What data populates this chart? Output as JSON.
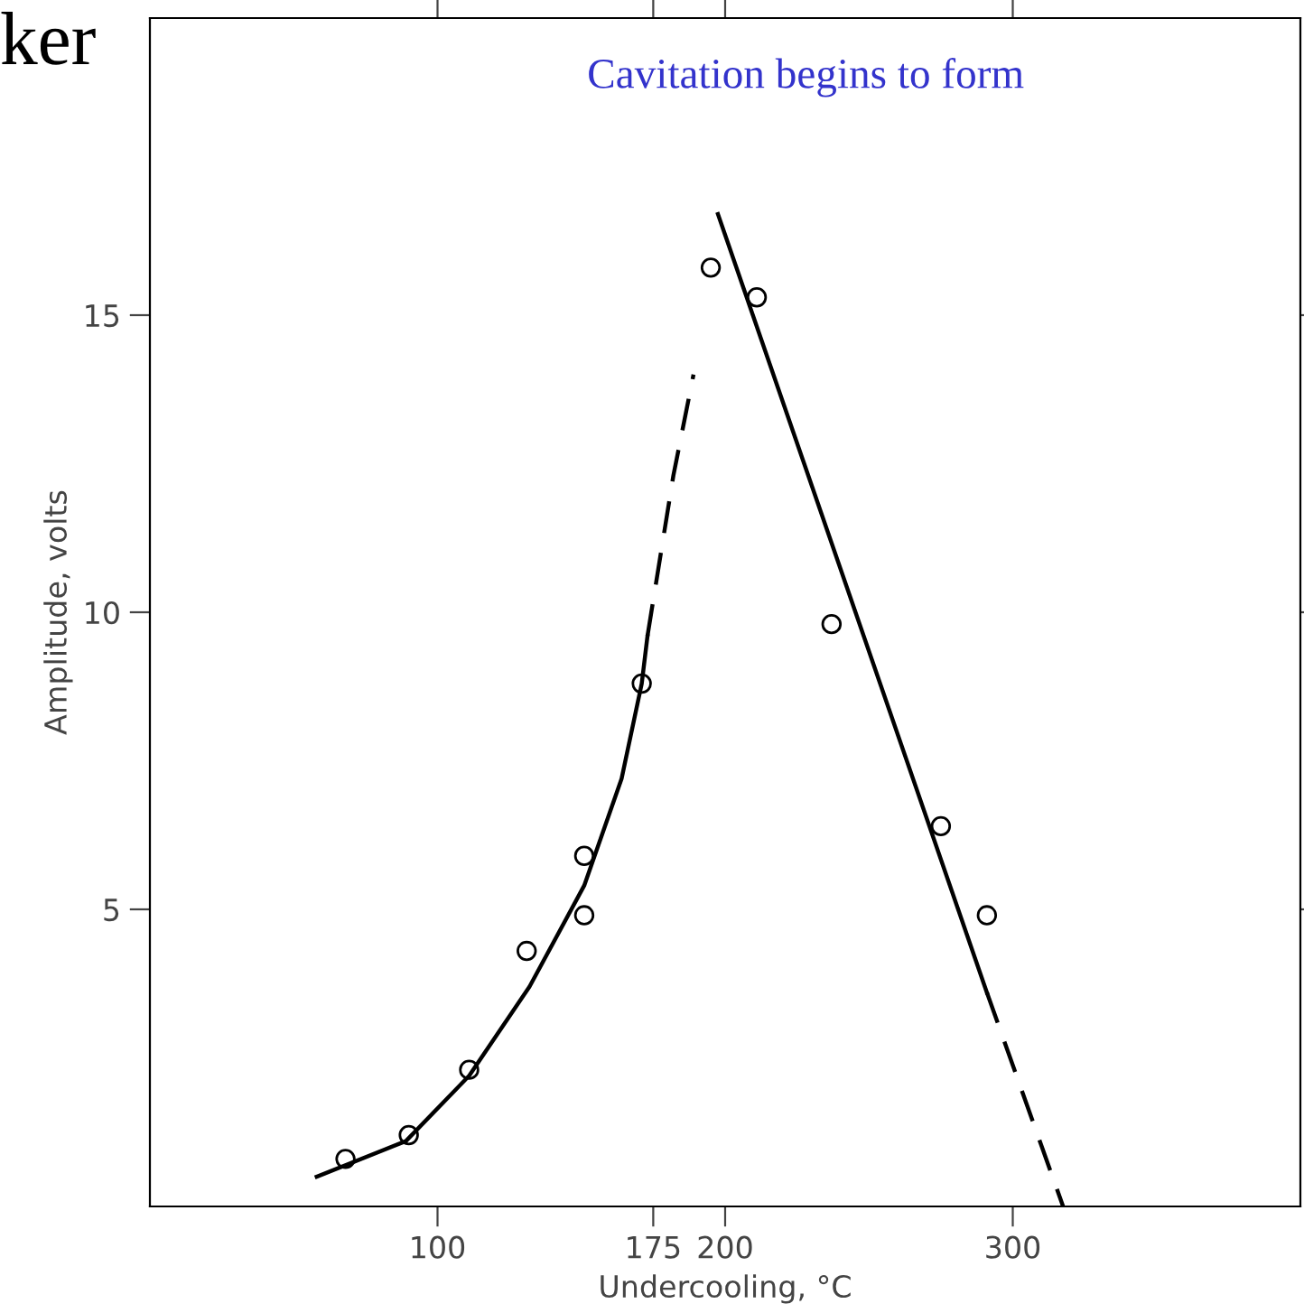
{
  "chart_data": {
    "type": "scatter",
    "xlabel": "Undercooling, °C",
    "ylabel": "Amplitude, volts",
    "annotations": [
      "Cavitation begins to form",
      "ker"
    ],
    "xlim": [
      0,
      400
    ],
    "ylim": [
      0,
      20
    ],
    "xticks": [
      100,
      175,
      200,
      300
    ],
    "yticks": [
      5,
      10,
      15
    ],
    "series": [
      {
        "color": "#000000",
        "marker": "circle",
        "x": [
          68,
          90,
          111,
          131,
          151,
          151,
          171,
          195,
          211,
          237,
          275,
          291
        ],
        "values": [
          0.8,
          1.2,
          2.3,
          4.3,
          5.9,
          4.9,
          8.8,
          15.8,
          15.3,
          9.8,
          6.4,
          4.9
        ]
      },
      {
        "type": "line",
        "color": "#000000",
        "line_style": "solid",
        "x": [
          58,
          89,
          111,
          132,
          151,
          164,
          171,
          173
        ],
        "values": [
          0.5,
          1.1,
          2.2,
          3.7,
          5.4,
          7.2,
          8.8,
          9.6
        ]
      },
      {
        "type": "line",
        "color": "#000000",
        "line_style": "dashed",
        "x": [
          173,
          176,
          182,
          189
        ],
        "values": [
          9.6,
          10.5,
          12.3,
          14.0
        ]
      },
      {
        "type": "line",
        "color": "#000000",
        "line_style": "solid",
        "x": [
          197.5,
          291
        ],
        "values": [
          16.7,
          3.6
        ]
      },
      {
        "type": "line",
        "color": "#000000",
        "line_style": "dashed",
        "x": [
          291,
          317.5
        ],
        "values": [
          3.6,
          0
        ]
      }
    ]
  }
}
